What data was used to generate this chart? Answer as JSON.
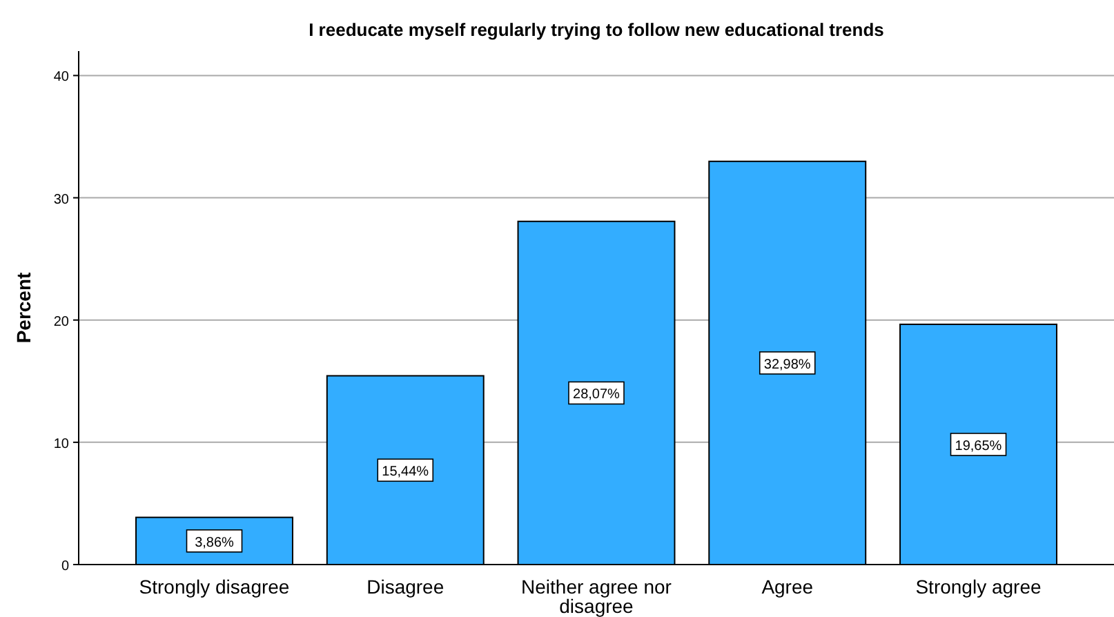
{
  "chart_data": {
    "type": "bar",
    "title": "I reeducate myself regularly trying to follow new educational trends",
    "ylabel": "Percent",
    "categories": [
      "Strongly disagree",
      "Disagree",
      "Neither agree nor disagree",
      "Agree",
      "Strongly agree"
    ],
    "values": [
      3.86,
      15.44,
      28.07,
      32.98,
      19.65
    ],
    "value_labels": [
      "3,86%",
      "15,44%",
      "28,07%",
      "32,98%",
      "19,65%"
    ],
    "color": "#33adff",
    "ylim": [
      0,
      42
    ],
    "yticks": [
      0,
      10,
      20,
      30,
      40
    ],
    "grid": "y"
  }
}
